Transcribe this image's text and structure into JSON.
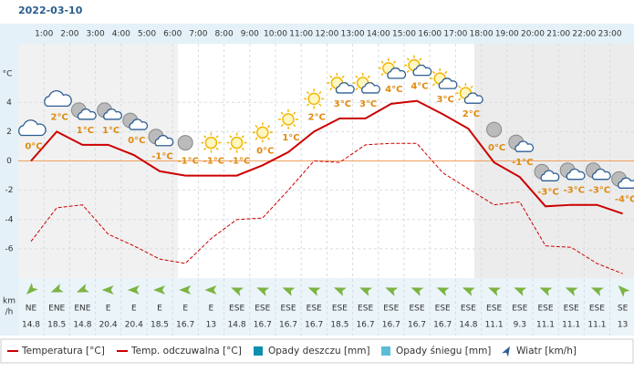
{
  "date": "2022-03-10",
  "chart_data": {
    "type": "line",
    "categories": [
      null,
      "1:00",
      "2:00",
      "3:00",
      "4:00",
      "5:00",
      "6:00",
      "7:00",
      "8:00",
      "9:00",
      "10:00",
      "11:00",
      "12:00",
      "13:00",
      "14:00",
      "15:00",
      "16:00",
      "17:00",
      "18:00",
      "19:00",
      "20:00",
      "21:00",
      "22:00",
      "23:00"
    ],
    "y_unit": "°C",
    "ylim": [
      -8,
      8
    ],
    "yticks": [
      4,
      2,
      0,
      -2,
      -4,
      -6
    ],
    "grid": true,
    "series": [
      {
        "name": "Temperatura [°C]",
        "color": "#cc0000",
        "values": [
          0,
          2,
          1.1,
          1.1,
          0.4,
          -0.7,
          -1,
          -1,
          -1,
          -0.3,
          0.6,
          2,
          2.9,
          2.9,
          3.9,
          4.1,
          3.2,
          2.2,
          -0.1,
          -1.1,
          -3.1,
          -3,
          -3,
          -3.6
        ],
        "value_labels": [
          "0°C",
          "2°C",
          "1°C",
          "1°C",
          "0°C",
          "-1°C",
          "-1°C",
          "-1°C",
          "-1°C",
          "0°C",
          "1°C",
          "2°C",
          "3°C",
          "3°C",
          "4°C",
          "4°C",
          "3°C",
          "2°C",
          "0°C",
          "-1°C",
          "-3°C",
          "-3°C",
          "-3°C",
          "-4°C"
        ]
      },
      {
        "name": "Temp. odczuwalna [°C]",
        "color": "#cc0000",
        "values": [
          -5.5,
          -3.2,
          -3,
          -5,
          -5.8,
          -6.7,
          -7,
          -5.3,
          -4,
          -3.9,
          -2,
          0,
          -0.1,
          1.1,
          1.2,
          1.2,
          -0.8,
          -1.9,
          -3,
          -2.8,
          -5.8,
          -5.9,
          -7,
          -7.7
        ]
      }
    ],
    "precipitation_legend": [
      {
        "name": "Opady deszczu [mm]",
        "color": "#0e8fb0"
      },
      {
        "name": "Opady śniegu [mm]",
        "color": "#5bbcd6"
      }
    ],
    "wind": {
      "name": "Wiatr [km/h]",
      "unit": [
        "km",
        "/h"
      ],
      "color": "#7cb342",
      "directions": [
        "NE",
        "ENE",
        "ENE",
        "E",
        "E",
        "E",
        "E",
        "E",
        "ESE",
        "ESE",
        "ESE",
        "ESE",
        "ESE",
        "ESE",
        "ESE",
        "ESE",
        "ESE",
        "ESE",
        "ESE",
        "ESE",
        "ESE",
        "ESE",
        "ESE",
        "SE"
      ],
      "speeds": [
        14.8,
        18.5,
        14.8,
        20.4,
        20.4,
        18.5,
        16.7,
        13,
        14.8,
        16.7,
        16.7,
        16.7,
        18.5,
        16.7,
        16.7,
        16.7,
        16.7,
        14.8,
        11.1,
        9.3,
        11.1,
        11.1,
        11.1,
        13
      ]
    }
  }
}
